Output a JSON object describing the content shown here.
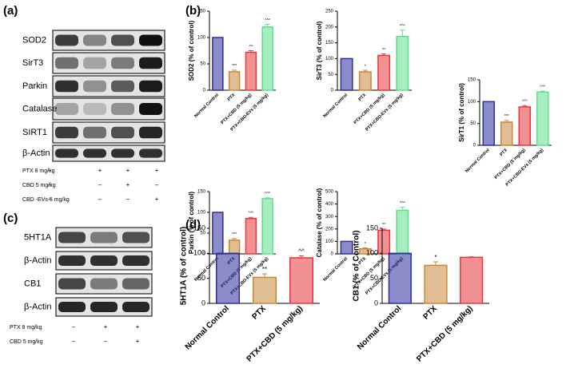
{
  "panels": [
    "(a)",
    "(b)",
    "(c)",
    "(d)"
  ],
  "blots": {
    "a": {
      "labels": [
        "SOD2",
        "SirT3",
        "Parkin",
        "Catalase",
        "SIRT1",
        "β-Actin"
      ],
      "treatments": [
        {
          "label": "PTX  8 mg/kg",
          "marks": [
            "–",
            "+",
            "+",
            "+"
          ]
        },
        {
          "label": "CBD  5 mg/kg",
          "marks": [
            "–",
            "–",
            "+",
            "–"
          ]
        },
        {
          "label": "CBD -EVs  5 mg/kg",
          "marks": [
            "–",
            "–",
            "–",
            "+"
          ]
        }
      ]
    },
    "c": {
      "labels": [
        "5HT1A",
        "β-Actin",
        "CB1",
        "β-Actin"
      ],
      "treatments": [
        {
          "label": "PTX  8 mg/kg",
          "marks": [
            "–",
            "+",
            "+"
          ]
        },
        {
          "label": "CBD  5 mg/kg",
          "marks": [
            "–",
            "–",
            "+"
          ]
        }
      ]
    }
  },
  "chart_data": [
    {
      "type": "bar",
      "ylabel": "SOD2 (% of control)",
      "categories": [
        "Normal Control",
        "PTX",
        "PTX+CBD (5 mg/kg)",
        "PTX+CBD-EVs (5 mg/kg)"
      ],
      "values": [
        100,
        35,
        72,
        120
      ],
      "errors": [
        0,
        3,
        3,
        5
      ],
      "annotations": [
        null,
        "***",
        "^^",
        "^^^"
      ],
      "colors": [
        "#2e2e9e",
        "#c8873a",
        "#e8363c",
        "#5de08a"
      ],
      "ylim": [
        0,
        150
      ],
      "yticks": [
        0,
        50,
        100,
        150
      ]
    },
    {
      "type": "bar",
      "ylabel": "SirT3 (% of control)",
      "categories": [
        "Normal Control",
        "PTX",
        "PTX+CBD (5 mg/kg)",
        "PTX+CBD-EVs (5 mg/kg)"
      ],
      "values": [
        100,
        58,
        110,
        170
      ],
      "errors": [
        0,
        5,
        5,
        20
      ],
      "annotations": [
        null,
        "*",
        "^^",
        "^^^"
      ],
      "colors": [
        "#2e2e9e",
        "#c8873a",
        "#e8363c",
        "#5de08a"
      ],
      "ylim": [
        0,
        250
      ],
      "yticks": [
        0,
        50,
        100,
        150,
        200,
        250
      ]
    },
    {
      "type": "bar",
      "ylabel": "SirT1 (% of control)",
      "categories": [
        "Normal Control",
        "PTX",
        "PTX+CBD (5 mg/kg)",
        "PTX+CBD-EVs (5 mg/kg)"
      ],
      "values": [
        100,
        53,
        88,
        122
      ],
      "errors": [
        0,
        4,
        3,
        2
      ],
      "annotations": [
        null,
        "***",
        "^^^",
        "^^^"
      ],
      "colors": [
        "#2e2e9e",
        "#c8873a",
        "#e8363c",
        "#5de08a"
      ],
      "ylim": [
        0,
        150
      ],
      "yticks": [
        0,
        50,
        100,
        150
      ]
    },
    {
      "type": "bar",
      "ylabel": "Parkin (% of control)",
      "categories": [
        "Normal Control",
        "PTX",
        "PTX+CBD (5 mg/kg)",
        "PTX+CBD-EVs (5 mg/kg)"
      ],
      "values": [
        100,
        33,
        85,
        133
      ],
      "errors": [
        0,
        4,
        3,
        2
      ],
      "annotations": [
        null,
        "***",
        "^^^",
        "^^^"
      ],
      "colors": [
        "#2e2e9e",
        "#c8873a",
        "#e8363c",
        "#5de08a"
      ],
      "ylim": [
        0,
        150
      ],
      "yticks": [
        0,
        50,
        100,
        150
      ]
    },
    {
      "type": "bar",
      "ylabel": "Catalase (% of control)",
      "categories": [
        "Normal Control",
        "PTX",
        "PTX+CBD (5 mg/kg)",
        "PTX+CBD-EVs (5 mg/kg)"
      ],
      "values": [
        100,
        40,
        190,
        350
      ],
      "errors": [
        0,
        8,
        10,
        25
      ],
      "annotations": [
        null,
        "*",
        "^^",
        "^^^"
      ],
      "colors": [
        "#2e2e9e",
        "#c8873a",
        "#e8363c",
        "#5de08a"
      ],
      "ylim": [
        0,
        500
      ],
      "yticks": [
        0,
        100,
        200,
        300,
        400,
        500
      ]
    },
    {
      "type": "bar",
      "ylabel": "5HT1A (% of control)",
      "categories": [
        "Normal Control",
        "PTX",
        "PTX+CBD (5 mg/kg)"
      ],
      "values": [
        100,
        52,
        91
      ],
      "errors": [
        0,
        7,
        4
      ],
      "annotations": [
        null,
        "**",
        "^^"
      ],
      "colors": [
        "#2e2e9e",
        "#c8873a",
        "#e8363c"
      ],
      "ylim": [
        0,
        150
      ],
      "yticks": [
        0,
        50,
        100,
        150
      ]
    },
    {
      "type": "bar",
      "ylabel": "CB1 (% of Control)",
      "categories": [
        "Normal Control",
        "PTX",
        "PTX+CBD (5 mg/kg)"
      ],
      "values": [
        100,
        76,
        92
      ],
      "errors": [
        0,
        7,
        1
      ],
      "annotations": [
        null,
        "*",
        null
      ],
      "colors": [
        "#2e2e9e",
        "#c8873a",
        "#e8363c"
      ],
      "ylim": [
        0,
        150
      ],
      "yticks": [
        0,
        50,
        100,
        150
      ]
    }
  ]
}
